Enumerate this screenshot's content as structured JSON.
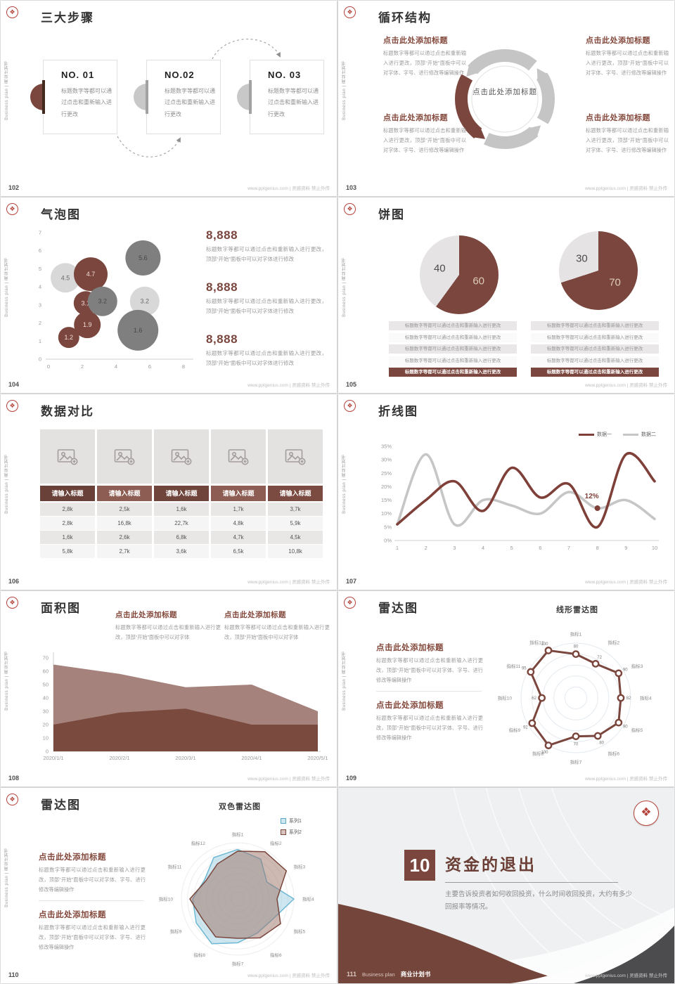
{
  "common": {
    "watermark": "www.pptgenius.com | 灵感资料 禁止外传",
    "sidebar_text": "Business plan | 商业计划书",
    "click_heading": "点击此处添加标题",
    "body_short": "标题数字等都可以通过点击和重新输入进行更改",
    "body_medium": "标题数字等都可以通过点击和重新输入进行更改，顶部“开始”面板中可以对字体进行修改",
    "body_area": "标题数字等都可以通过点击和重新输入进行更改，顶部“开始”面板中可以对字体",
    "body_long": "标题数字等都可以通过点击和重新输入进行更改，顶部“开始”面板中可以对字体、字号、进行修改等编辑操作",
    "accent_color": "#7a463d"
  },
  "slides": {
    "s102": {
      "page": "102",
      "title": "三大步骤",
      "cards": [
        {
          "no": "NO. 01"
        },
        {
          "no": "NO.02"
        },
        {
          "no": "NO. 03"
        }
      ]
    },
    "s103": {
      "page": "103",
      "title": "循环结构",
      "center_label": "点击此处添加标题"
    },
    "s104": {
      "page": "104",
      "title": "气泡图",
      "stat_value": "8,888"
    },
    "s105": {
      "page": "105",
      "title": "饼图"
    },
    "s106": {
      "page": "106",
      "title": "数据对比"
    },
    "s107": {
      "page": "107",
      "title": "折线图"
    },
    "s108": {
      "page": "108",
      "title": "面积图"
    },
    "s109": {
      "page": "109",
      "title": "雷达图",
      "chart_title": "线形雷达图"
    },
    "s110": {
      "page": "110",
      "title": "雷达图",
      "chart_title": "双色雷达图"
    },
    "s111": {
      "page": "111",
      "number": "10",
      "title": "资金的退出",
      "body": "主要告诉投资者如何收回投资，什么时间收回投资，大约有多少回报率等情况。",
      "footer_num": "111",
      "footer_en": "Business plan",
      "footer_cn": "商业计划书"
    }
  },
  "chart_data": [
    {
      "type": "scatter",
      "slide": "104",
      "title": "气泡图",
      "xlim": [
        0,
        8
      ],
      "ylim": [
        0,
        7
      ],
      "xticks": [
        0,
        2,
        4,
        6,
        8
      ],
      "points": [
        {
          "x": 1.0,
          "y": 4.5,
          "r": 21,
          "color": "light",
          "label": "4.5"
        },
        {
          "x": 2.5,
          "y": 4.7,
          "r": 24,
          "color": "red",
          "label": "4.7"
        },
        {
          "x": 2.2,
          "y": 3.1,
          "r": 17,
          "color": "red",
          "label": "3.1"
        },
        {
          "x": 3.2,
          "y": 3.2,
          "r": 21,
          "color": "dark",
          "label": "3.2"
        },
        {
          "x": 5.7,
          "y": 3.2,
          "r": 21,
          "color": "light",
          "label": "3.2"
        },
        {
          "x": 2.3,
          "y": 1.9,
          "r": 19,
          "color": "red",
          "label": "1.9"
        },
        {
          "x": 1.2,
          "y": 1.2,
          "r": 15,
          "color": "red",
          "label": "1.2"
        },
        {
          "x": 5.3,
          "y": 1.6,
          "r": 29,
          "color": "dark",
          "label": "1.6"
        },
        {
          "x": 5.6,
          "y": 5.6,
          "r": 25,
          "color": "dark",
          "label": "5.6"
        }
      ]
    },
    {
      "type": "pie",
      "slide": "105",
      "pies": [
        {
          "slices": [
            {
              "label": "60",
              "value": 60,
              "color": "#7a463d"
            },
            {
              "label": "40",
              "value": 40,
              "color": "#e5e3e3"
            }
          ]
        },
        {
          "slices": [
            {
              "label": "70",
              "value": 70,
              "color": "#7a463d"
            },
            {
              "label": "30",
              "value": 30,
              "color": "#e5e3e3"
            }
          ]
        }
      ]
    },
    {
      "type": "table",
      "slide": "106",
      "columns": [
        "请输入标题",
        "请输入标题",
        "请输入标题",
        "请输入标题",
        "请输入标题"
      ],
      "header_colors": [
        "#6a4139",
        "#8d5c52",
        "#6e443b",
        "#8d5c52",
        "#7b4a41"
      ],
      "rows": [
        [
          "2,8k",
          "2,5k",
          "1,6k",
          "1,7k",
          "3,7k"
        ],
        [
          "2,8k",
          "16,8k",
          "22,7k",
          "4,8k",
          "5,9k"
        ],
        [
          "1,6k",
          "2,6k",
          "6,8k",
          "4,7k",
          "4,5k"
        ],
        [
          "5,8k",
          "2,7k",
          "3,6k",
          "6,5k",
          "10,8k"
        ]
      ]
    },
    {
      "type": "line",
      "slide": "107",
      "x": [
        1,
        2,
        3,
        4,
        5,
        6,
        7,
        8,
        9,
        10
      ],
      "ylim": [
        0,
        35
      ],
      "ytick_step": 5,
      "series": [
        {
          "name": "数据一",
          "color": "#7e4038",
          "values": [
            6,
            15,
            22,
            11,
            27,
            16,
            21,
            5,
            32,
            22
          ]
        },
        {
          "name": "数据二",
          "color": "#c6c6c6",
          "values": [
            6,
            32,
            6,
            15,
            13,
            10,
            18,
            12,
            15,
            8
          ]
        }
      ],
      "annotation": {
        "x": 8,
        "y": 12,
        "text": "12%"
      }
    },
    {
      "type": "area",
      "slide": "108",
      "categories": [
        "2020/1/1",
        "2020/2/1",
        "2020/3/1",
        "2020/4/1",
        "2020/5/1"
      ],
      "ylim": [
        0,
        70
      ],
      "ytick_step": 10,
      "series": [
        {
          "color": "#a5837c",
          "values": [
            65,
            58,
            48,
            50,
            30
          ]
        },
        {
          "color": "#7b4a3e",
          "values": [
            20,
            29,
            32,
            20,
            20
          ]
        }
      ]
    },
    {
      "type": "radar",
      "slide": "109",
      "title": "线形雷达图",
      "max": 100,
      "categories": [
        "指标1",
        "指标2",
        "指标3",
        "指标4",
        "指标5",
        "指标6",
        "指标7",
        "指标8",
        "指标9",
        "指标10",
        "指标11",
        "指标12"
      ],
      "series": [
        {
          "color": "#7a463d",
          "width": 3,
          "markers": true,
          "show_values": true,
          "values": [
            80,
            72,
            90,
            82,
            90,
            80,
            70,
            100,
            92,
            62,
            95,
            100
          ]
        }
      ]
    },
    {
      "type": "radar",
      "slide": "110",
      "title": "双色雷达图",
      "max": 100,
      "categories": [
        "指标1",
        "指标2",
        "指标3",
        "指标4",
        "指标5",
        "指标6",
        "指标7",
        "指标8",
        "指标9",
        "指标10",
        "指标11",
        "指标12"
      ],
      "series": [
        {
          "name": "系列1",
          "color": "#6fb9d4",
          "fill": "rgba(164,210,226,0.55)",
          "values": [
            88,
            82,
            60,
            100,
            72,
            70,
            78,
            92,
            85,
            80,
            68,
            85
          ]
        },
        {
          "name": "系列2",
          "color": "#7a463d",
          "fill": "rgba(158,113,101,0.5)",
          "values": [
            85,
            97,
            100,
            70,
            88,
            80,
            70,
            78,
            72,
            85,
            65,
            72
          ]
        }
      ]
    }
  ]
}
